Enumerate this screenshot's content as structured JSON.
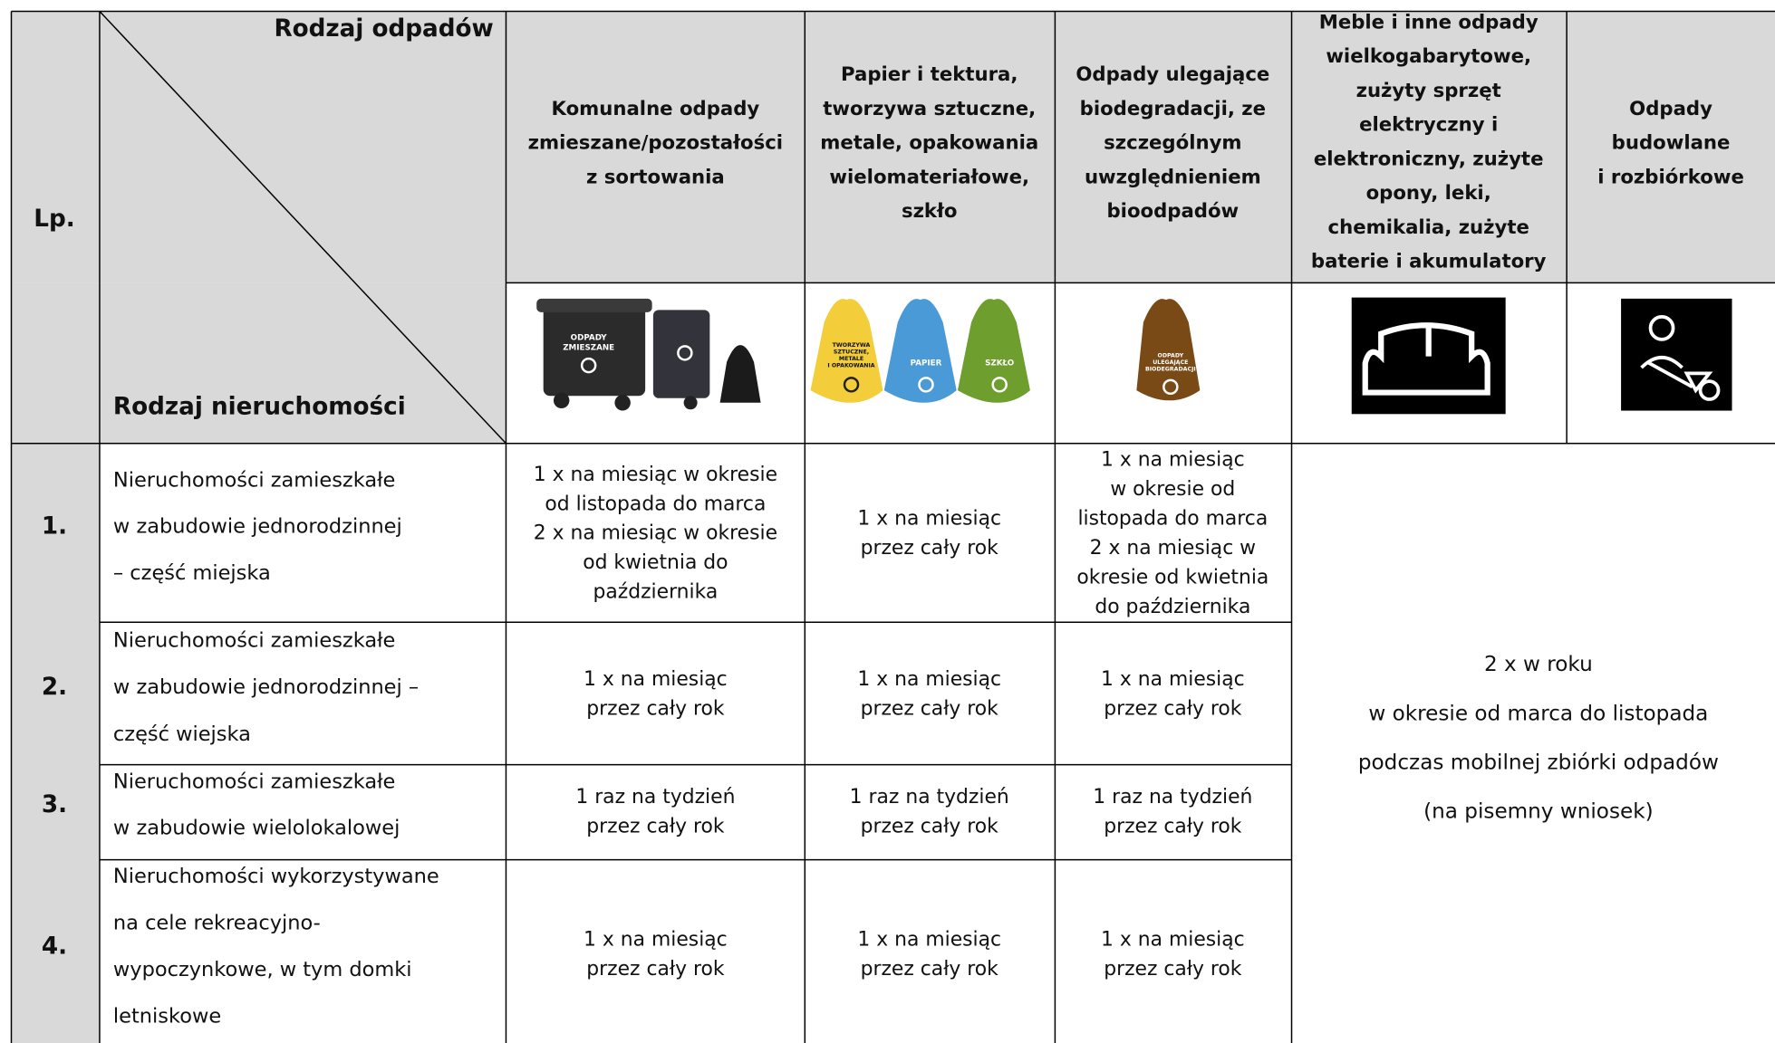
{
  "header": {
    "lp": "Lp.",
    "waste_type": "Rodzaj odpadów",
    "property_type": "Rodzaj nieruchomości",
    "columns": [
      [
        "Komunalne odpady",
        "zmieszane/pozostałości",
        "z sortowania"
      ],
      [
        "Papier i tektura,",
        "tworzywa sztuczne,",
        "metale, opakowania",
        "wielomateriałowe,",
        "szkło"
      ],
      [
        "Odpady ulegające",
        "biodegradacji, ze",
        "szczególnym",
        "uwzględnieniem",
        "bioodpadów"
      ],
      [
        "Meble i inne odpady",
        "wielkogabarytowe,",
        "zużyty sprzęt",
        "elektryczny i",
        "elektroniczny, zużyte",
        "opony, leki,",
        "chemikalia, zużyte",
        "baterie i akumulatory"
      ],
      [
        "Odpady",
        "budowlane",
        "i rozbiórkowe"
      ]
    ]
  },
  "icons": {
    "mixed": [
      "ODPADY",
      "ZMIESZANE"
    ],
    "plastics": [
      "TWORZYWA",
      "SZTUCZNE,",
      "METALE",
      "I OPAKOWANIA"
    ],
    "paper": "PAPIER",
    "glass": "SZKŁO",
    "bio": [
      "ODPADY",
      "ULEGAJĄCE",
      "BIODEGRADACJI"
    ]
  },
  "table": {
    "rows": [
      {
        "lp": "1.",
        "property": [
          "Nieruchomości zamieszkałe",
          "w zabudowie jednorodzinnej",
          "– część miejska"
        ],
        "cells": [
          [
            "1 x na miesiąc w okresie",
            "od listopada do marca",
            "2 x na miesiąc w okresie",
            "od kwietnia do",
            "października"
          ],
          [
            "1 x na miesiąc",
            "przez cały rok"
          ],
          [
            "1 x na miesiąc",
            "w okresie od",
            "listopada do marca",
            "2 x na miesiąc w",
            "okresie od kwietnia",
            "do października"
          ]
        ]
      },
      {
        "lp": "2.",
        "property": [
          "Nieruchomości zamieszkałe",
          "w zabudowie jednorodzinnej –",
          "część wiejska"
        ],
        "cells": [
          [
            "1 x na miesiąc",
            "przez cały rok"
          ],
          [
            "1 x na miesiąc",
            "przez cały rok"
          ],
          [
            "1 x na miesiąc",
            "przez cały rok"
          ]
        ]
      },
      {
        "lp": "3.",
        "property": [
          "Nieruchomości zamieszkałe",
          "w zabudowie wielolokalowej"
        ],
        "cells": [
          [
            "1 raz na tydzień",
            "przez cały rok"
          ],
          [
            "1 raz na tydzień",
            "przez cały rok"
          ],
          [
            "1 raz na tydzień",
            "przez cały rok"
          ]
        ]
      },
      {
        "lp": "4.",
        "property": [
          "Nieruchomości wykorzystywane",
          "na cele rekreacyjno-",
          "wypoczynkowe, w tym domki",
          "letniskowe"
        ],
        "cells": [
          [
            "1 x na miesiąc",
            "przez cały rok"
          ],
          [
            "1 x na miesiąc",
            "przez cały rok"
          ],
          [
            "1 x na miesiąc",
            "przez cały rok"
          ]
        ]
      }
    ],
    "shared": [
      "2 x w roku",
      "w okresie od marca do listopada",
      "podczas mobilnej zbiórki odpadów",
      "(na pisemny wniosek)"
    ]
  }
}
